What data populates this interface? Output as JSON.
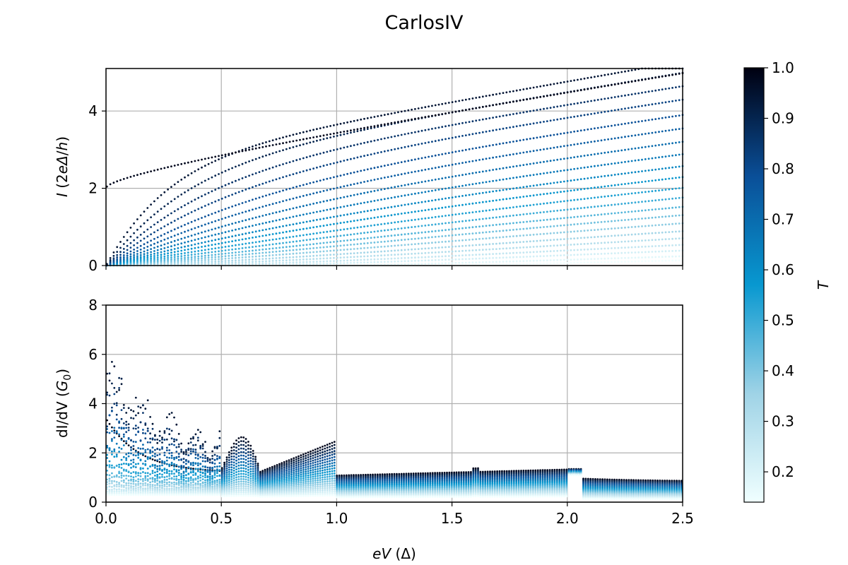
{
  "chart_data": [
    {
      "type": "scatter",
      "title": "CarlosIV",
      "xlabel": "",
      "ylabel": "I (2eΔ/h)",
      "xlim": [
        0.0,
        2.5
      ],
      "ylim": [
        0,
        5.1
      ],
      "xticks": [
        "",
        "",
        "",
        "",
        "",
        ""
      ],
      "yticks": [
        "0",
        "2",
        "4"
      ],
      "ytick_values": [
        0,
        2,
        4
      ],
      "grid": true,
      "series_description": "One dotted I-V curve per transmission T; colour encodes T",
      "t_values": [
        0.14,
        0.18,
        0.22,
        0.26,
        0.3,
        0.34,
        0.38,
        0.42,
        0.46,
        0.5,
        0.54,
        0.58,
        0.62,
        0.66,
        0.7,
        0.74,
        0.78,
        0.82,
        0.86,
        0.9,
        0.94,
        0.98
      ],
      "end_values_at_x_2_5": [
        0.14,
        0.25,
        0.4,
        0.55,
        0.72,
        0.9,
        1.1,
        1.3,
        1.5,
        1.72,
        1.95,
        2.2,
        2.45,
        2.72,
        3.0,
        3.3,
        3.6,
        3.95,
        4.25,
        4.55,
        4.8,
        5.0
      ]
    },
    {
      "type": "scatter",
      "title": "",
      "xlabel": "eV (Δ)",
      "ylabel": "dI/dV (G₀)",
      "xlim": [
        0.0,
        2.5
      ],
      "ylim": [
        0,
        8
      ],
      "xticks": [
        "0.0",
        "0.5",
        "1.0",
        "1.5",
        "2.0",
        "2.5"
      ],
      "xtick_values": [
        0.0,
        0.5,
        1.0,
        1.5,
        2.0,
        2.5
      ],
      "yticks": [
        "0",
        "2",
        "4",
        "6",
        "8"
      ],
      "ytick_values": [
        0,
        2,
        4,
        6,
        8
      ],
      "grid": true,
      "series_description": "Differential conductance per transmission T; steps at eV = 2Δ/n",
      "step_positions": [
        0.5,
        0.667,
        1.0,
        2.0
      ]
    }
  ],
  "colorbar": {
    "label": "T",
    "range": [
      0.14,
      1.0
    ],
    "tick_values": [
      0.2,
      0.3,
      0.4,
      0.5,
      0.6,
      0.7,
      0.8,
      0.9,
      1.0
    ],
    "ticks": [
      "0.2",
      "0.3",
      "0.4",
      "0.5",
      "0.6",
      "0.7",
      "0.8",
      "0.9",
      "1.0"
    ],
    "colormap": "blues-light-to-dark",
    "color_stops": [
      "#f0ffff",
      "#9fd3e6",
      "#0898d0",
      "#0a4f98",
      "#000010"
    ]
  }
}
